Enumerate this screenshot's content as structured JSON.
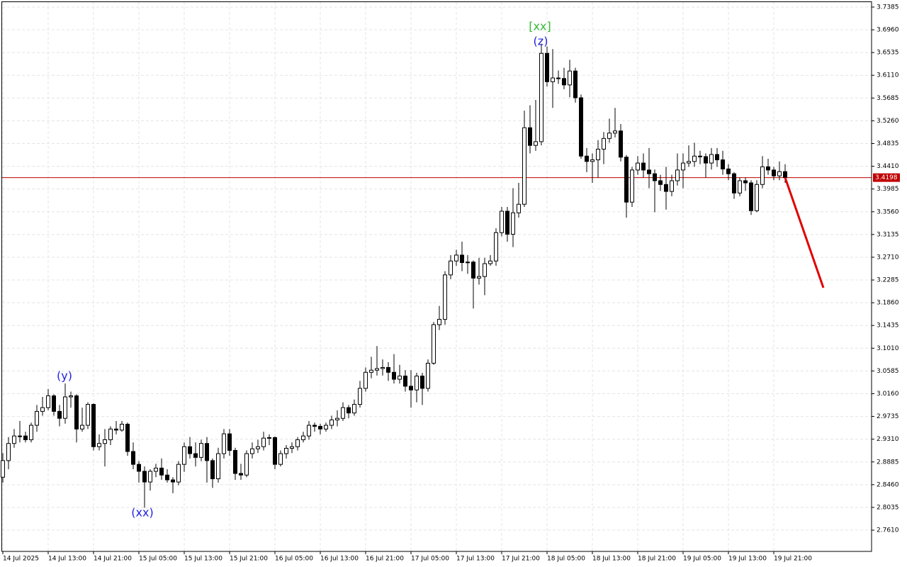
{
  "chart_data": {
    "type": "candlestick",
    "open": [
      2.86,
      2.891,
      2.923,
      2.937,
      2.937,
      2.93,
      2.957,
      2.983,
      2.99,
      3.012,
      2.983,
      2.97,
      3.01,
      3.012,
      2.95,
      2.957,
      2.996,
      2.917,
      2.923,
      2.93,
      2.95,
      2.948,
      2.959,
      2.908,
      2.884,
      2.871,
      2.851,
      2.871,
      2.877,
      2.864,
      2.855,
      2.851,
      2.884,
      2.917,
      2.904,
      2.897,
      2.923,
      2.891,
      2.857,
      2.904,
      2.941,
      2.91,
      2.867,
      2.864,
      2.904,
      2.913,
      2.917,
      2.933,
      2.934,
      2.884,
      2.904,
      2.914,
      2.917,
      2.93,
      2.937,
      2.957,
      2.955,
      2.95,
      2.957,
      2.967,
      2.97,
      2.99,
      2.98,
      2.996,
      3.026,
      3.056,
      3.06,
      3.063,
      3.065,
      3.056,
      3.043,
      3.049,
      3.03,
      3.023,
      3.049,
      3.026,
      3.073,
      3.145,
      3.155,
      3.238,
      3.264,
      3.275,
      3.261,
      3.262,
      3.232,
      3.235,
      3.259,
      3.264,
      3.317,
      3.357,
      3.314,
      3.354,
      3.37,
      3.513,
      3.48,
      3.487,
      3.652,
      3.599,
      3.606,
      3.605,
      3.593,
      3.619,
      3.569,
      3.46,
      3.45,
      3.453,
      3.473,
      3.493,
      3.503,
      3.507,
      3.458,
      3.374,
      3.434,
      3.447,
      3.434,
      3.427,
      3.414,
      3.407,
      3.394,
      3.414,
      3.434,
      3.447,
      3.45,
      3.46,
      3.459,
      3.447,
      3.463,
      3.453,
      3.436,
      3.427,
      3.391,
      3.414,
      3.41,
      3.358,
      3.407,
      3.44,
      3.434,
      3.423,
      3.431
    ],
    "high": [
      2.905,
      2.935,
      2.95,
      2.965,
      2.945,
      2.962,
      2.995,
      3.01,
      3.025,
      3.015,
      2.995,
      3.035,
      3.02,
      3.015,
      2.99,
      3.0,
      2.998,
      2.94,
      2.95,
      2.955,
      2.965,
      2.965,
      2.962,
      2.925,
      2.89,
      2.88,
      2.875,
      2.885,
      2.895,
      2.875,
      2.86,
      2.89,
      2.925,
      2.935,
      2.925,
      2.93,
      2.935,
      2.895,
      2.915,
      2.95,
      2.95,
      2.915,
      2.885,
      2.91,
      2.925,
      2.93,
      2.945,
      2.94,
      2.936,
      2.91,
      2.92,
      2.925,
      2.935,
      2.945,
      2.965,
      2.962,
      2.96,
      2.962,
      2.975,
      2.985,
      3.0,
      2.995,
      3.005,
      3.04,
      3.065,
      3.085,
      3.105,
      3.08,
      3.075,
      3.09,
      3.07,
      3.06,
      3.06,
      3.055,
      3.055,
      3.08,
      3.15,
      3.18,
      3.245,
      3.275,
      3.285,
      3.3,
      3.275,
      3.265,
      3.27,
      3.27,
      3.275,
      3.325,
      3.365,
      3.365,
      3.4,
      3.41,
      3.545,
      3.555,
      3.565,
      3.67,
      3.665,
      3.66,
      3.62,
      3.625,
      3.64,
      3.625,
      3.575,
      3.475,
      3.465,
      3.49,
      3.505,
      3.53,
      3.55,
      3.52,
      3.462,
      3.44,
      3.46,
      3.465,
      3.475,
      3.435,
      3.425,
      3.44,
      3.425,
      3.465,
      3.465,
      3.48,
      3.485,
      3.47,
      3.465,
      3.475,
      3.475,
      3.47,
      3.445,
      3.43,
      3.42,
      3.42,
      3.415,
      3.415,
      3.46,
      3.455,
      3.44,
      3.45,
      3.445
    ],
    "low": [
      2.85,
      2.875,
      2.915,
      2.925,
      2.925,
      2.925,
      2.945,
      2.975,
      2.985,
      2.975,
      2.955,
      2.96,
      2.99,
      2.925,
      2.945,
      2.95,
      2.91,
      2.91,
      2.88,
      2.92,
      2.94,
      2.945,
      2.9,
      2.875,
      2.85,
      2.803,
      2.835,
      2.86,
      2.855,
      2.85,
      2.83,
      2.845,
      2.87,
      2.895,
      2.88,
      2.89,
      2.85,
      2.84,
      2.85,
      2.895,
      2.9,
      2.855,
      2.855,
      2.86,
      2.895,
      2.905,
      2.91,
      2.92,
      2.875,
      2.88,
      2.895,
      2.905,
      2.91,
      2.925,
      2.93,
      2.945,
      2.94,
      2.945,
      2.95,
      2.955,
      2.965,
      2.97,
      2.975,
      2.99,
      3.02,
      3.045,
      3.05,
      3.05,
      3.04,
      3.035,
      3.035,
      3.02,
      2.99,
      3.0,
      2.995,
      3.02,
      3.07,
      3.135,
      3.145,
      3.23,
      3.255,
      3.245,
      3.24,
      3.175,
      3.22,
      3.2,
      3.255,
      3.255,
      3.31,
      3.3,
      3.29,
      3.345,
      3.365,
      3.465,
      3.47,
      3.48,
      3.59,
      3.55,
      3.595,
      3.585,
      3.57,
      3.56,
      3.455,
      3.43,
      3.41,
      3.42,
      3.445,
      3.485,
      3.495,
      3.45,
      3.345,
      3.365,
      3.425,
      3.42,
      3.4,
      3.355,
      3.395,
      3.36,
      3.385,
      3.405,
      3.4,
      3.44,
      3.44,
      3.445,
      3.42,
      3.435,
      3.44,
      3.425,
      3.415,
      3.38,
      3.385,
      3.395,
      3.35,
      3.355,
      3.4,
      3.425,
      3.415,
      3.415,
      3.41
    ],
    "close": [
      2.891,
      2.923,
      2.937,
      2.937,
      2.93,
      2.957,
      2.983,
      2.99,
      3.012,
      2.983,
      2.97,
      3.01,
      3.012,
      2.95,
      2.957,
      2.996,
      2.917,
      2.923,
      2.93,
      2.95,
      2.948,
      2.959,
      2.908,
      2.884,
      2.871,
      2.851,
      2.871,
      2.877,
      2.864,
      2.855,
      2.851,
      2.884,
      2.917,
      2.904,
      2.897,
      2.923,
      2.891,
      2.857,
      2.904,
      2.941,
      2.91,
      2.867,
      2.864,
      2.904,
      2.913,
      2.917,
      2.933,
      2.934,
      2.884,
      2.904,
      2.914,
      2.917,
      2.93,
      2.937,
      2.957,
      2.955,
      2.95,
      2.957,
      2.967,
      2.97,
      2.99,
      2.98,
      2.996,
      3.026,
      3.056,
      3.06,
      3.063,
      3.065,
      3.056,
      3.043,
      3.049,
      3.03,
      3.023,
      3.049,
      3.026,
      3.073,
      3.145,
      3.155,
      3.238,
      3.264,
      3.275,
      3.261,
      3.262,
      3.232,
      3.235,
      3.259,
      3.264,
      3.317,
      3.357,
      3.314,
      3.354,
      3.37,
      3.513,
      3.48,
      3.487,
      3.652,
      3.599,
      3.606,
      3.605,
      3.593,
      3.619,
      3.569,
      3.46,
      3.45,
      3.453,
      3.473,
      3.493,
      3.503,
      3.507,
      3.458,
      3.374,
      3.434,
      3.447,
      3.434,
      3.427,
      3.414,
      3.407,
      3.394,
      3.414,
      3.434,
      3.447,
      3.45,
      3.46,
      3.459,
      3.447,
      3.463,
      3.453,
      3.436,
      3.427,
      3.391,
      3.414,
      3.41,
      3.358,
      3.407,
      3.44,
      3.434,
      3.423,
      3.431,
      3.4198
    ],
    "up_color": "#ffffff",
    "down_color": "#000000",
    "xlim": [
      -0.5,
      153.25
    ],
    "xticks": [
      {
        "value": 0,
        "label": "14 Jul 2025"
      },
      {
        "value": 8,
        "label": "14 Jul 13:00"
      },
      {
        "value": 16,
        "label": "14 Jul 21:00"
      },
      {
        "value": 24,
        "label": "15 Jul 05:00"
      },
      {
        "value": 32,
        "label": "15 Jul 13:00"
      },
      {
        "value": 40,
        "label": "15 Jul 21:00"
      },
      {
        "value": 48,
        "label": "16 Jul 05:00"
      },
      {
        "value": 56,
        "label": "16 Jul 13:00"
      },
      {
        "value": 64,
        "label": "16 Jul 21:00"
      },
      {
        "value": 72,
        "label": "17 Jul 05:00"
      },
      {
        "value": 80,
        "label": "17 Jul 13:00"
      },
      {
        "value": 88,
        "label": "17 Jul 21:00"
      },
      {
        "value": 96,
        "label": "18 Jul 05:00"
      },
      {
        "value": 104,
        "label": "18 Jul 13:00"
      },
      {
        "value": 112,
        "label": "18 Jul 21:00"
      },
      {
        "value": 120,
        "label": "19 Jul 05:00"
      },
      {
        "value": 128,
        "label": "19 Jul 13:00"
      },
      {
        "value": 136,
        "label": "19 Jul 21:00"
      }
    ],
    "ylim": [
      2.7213,
      3.7517
    ],
    "yticks": [
      {
        "value": 2.761,
        "label": "2.7610"
      },
      2.8035,
      {
        "value": 2.846,
        "label": "2.8460"
      },
      2.8885,
      {
        "value": 2.931,
        "label": "2.9310"
      },
      2.9735,
      {
        "value": 3.016,
        "label": "3.0160"
      },
      3.0585,
      {
        "value": 3.101,
        "label": "3.1010"
      },
      3.1435,
      {
        "value": 3.186,
        "label": "3.1860"
      },
      3.2285,
      {
        "value": 3.271,
        "label": "3.2710"
      },
      3.3135,
      {
        "value": 3.356,
        "label": "3.3560"
      },
      3.3985,
      {
        "value": 3.441,
        "label": "3.4410"
      },
      3.4835,
      {
        "value": 3.526,
        "label": "3.5260"
      },
      3.5685,
      {
        "value": 3.611,
        "label": "3.6110"
      },
      3.6535,
      {
        "value": 3.696,
        "label": "3.6960"
      },
      3.7385
    ],
    "grid": true,
    "price_line": {
      "value": 3.4198,
      "color": "#c00000"
    },
    "forecast": {
      "x": [
        138,
        144.75
      ],
      "values": [
        3.4198,
        3.214
      ],
      "color": "#e00000"
    },
    "annotations": [
      {
        "text": "(y)",
        "color": "#2222dd"
      },
      {
        "text": "(xx)",
        "color": "#2222dd"
      },
      {
        "text": "(z)",
        "color": "#2222dd"
      },
      {
        "text": "[xx]",
        "color": "#33bb33"
      }
    ]
  }
}
